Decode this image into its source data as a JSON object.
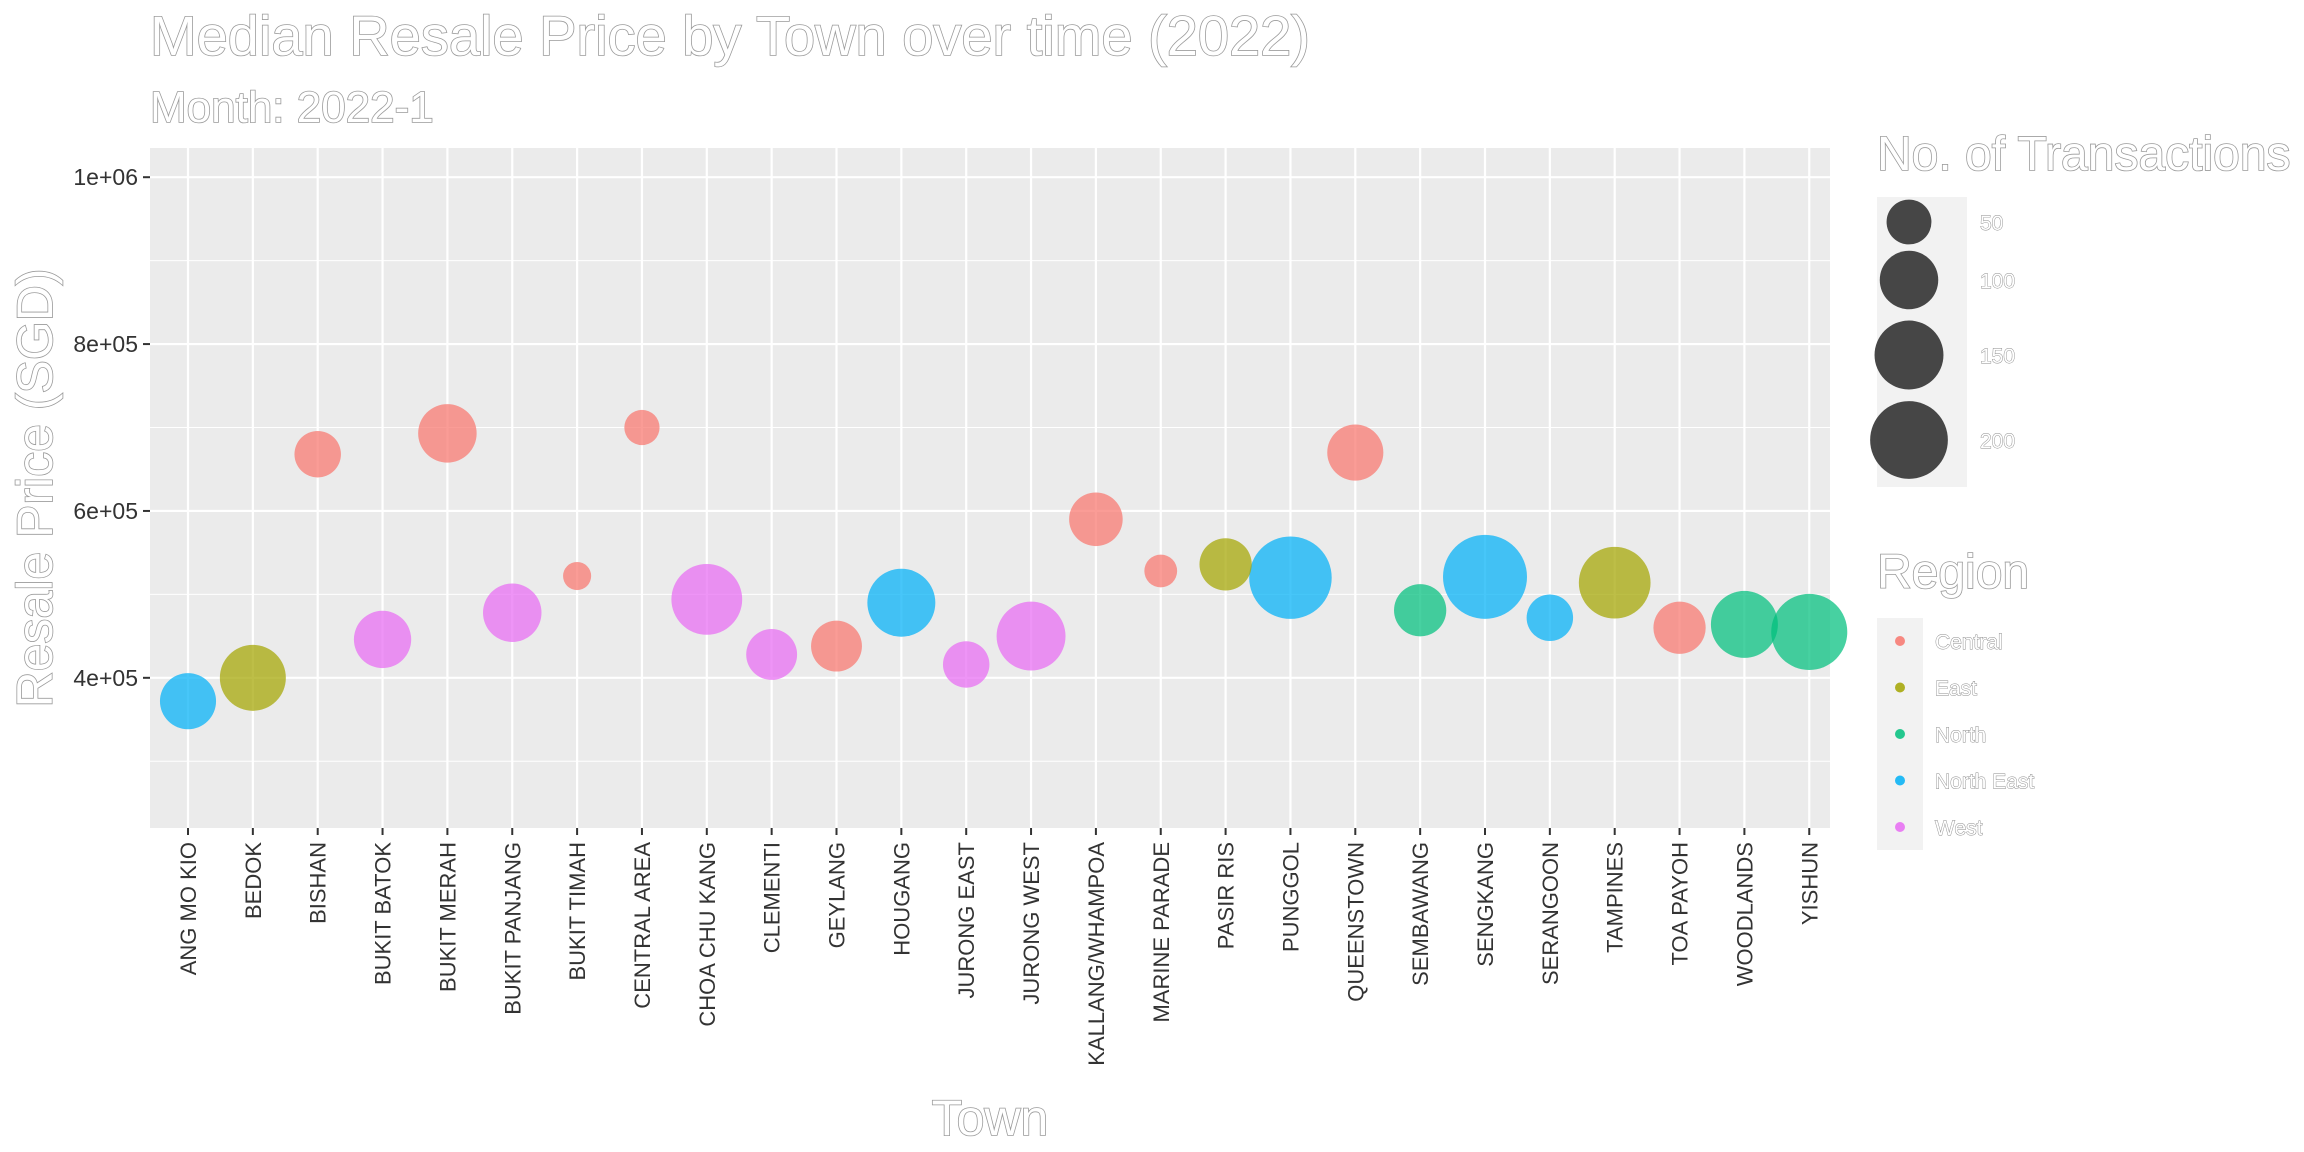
{
  "chart_data": {
    "type": "scatter",
    "title": "Median Resale Price by Town over time (2022)",
    "subtitle": "Month: 2022-1",
    "xlabel": "Town",
    "ylabel": "Resale Price (SGD)",
    "ylim": [
      220000,
      1035000
    ],
    "yticks": [
      400000,
      600000,
      800000,
      1000000
    ],
    "ytick_labels": [
      "4e+05",
      "6e+05",
      "8e+05",
      "1e+06"
    ],
    "grid": true,
    "legend_position": "right",
    "categories": [
      "ANG MO KIO",
      "BEDOK",
      "BISHAN",
      "BUKIT BATOK",
      "BUKIT MERAH",
      "BUKIT PANJANG",
      "BUKIT TIMAH",
      "CENTRAL AREA",
      "CHOA CHU KANG",
      "CLEMENTI",
      "GEYLANG",
      "HOUGANG",
      "JURONG EAST",
      "JURONG WEST",
      "KALLANG/WHAMPOA",
      "MARINE PARADE",
      "PASIR RIS",
      "PUNGGOL",
      "QUEENSTOWN",
      "SEMBAWANG",
      "SENGKANG",
      "SERANGOON",
      "TAMPINES",
      "TOA PAYOH",
      "WOODLANDS",
      "YISHUN"
    ],
    "points": [
      {
        "town": "ANG MO KIO",
        "price": 372000,
        "transactions": 90,
        "region": "North East"
      },
      {
        "town": "BEDOK",
        "price": 400000,
        "transactions": 135,
        "region": "East"
      },
      {
        "town": "BISHAN",
        "price": 668000,
        "transactions": 55,
        "region": "Central"
      },
      {
        "town": "BUKIT BATOK",
        "price": 446000,
        "transactions": 95,
        "region": "West"
      },
      {
        "town": "BUKIT MERAH",
        "price": 693000,
        "transactions": 100,
        "region": "Central"
      },
      {
        "town": "BUKIT PANJANG",
        "price": 478000,
        "transactions": 100,
        "region": "West"
      },
      {
        "town": "BUKIT TIMAH",
        "price": 522000,
        "transactions": 12,
        "region": "Central"
      },
      {
        "town": "CENTRAL AREA",
        "price": 700000,
        "transactions": 25,
        "region": "Central"
      },
      {
        "town": "CHOA CHU KANG",
        "price": 494000,
        "transactions": 160,
        "region": "West"
      },
      {
        "town": "CLEMENTI",
        "price": 428000,
        "transactions": 70,
        "region": "West"
      },
      {
        "town": "GEYLANG",
        "price": 438000,
        "transactions": 70,
        "region": "Central"
      },
      {
        "town": "HOUGANG",
        "price": 490000,
        "transactions": 145,
        "region": "North East"
      },
      {
        "town": "JURONG EAST",
        "price": 416000,
        "transactions": 55,
        "region": "West"
      },
      {
        "town": "JURONG WEST",
        "price": 450000,
        "transactions": 150,
        "region": "West"
      },
      {
        "town": "KALLANG/WHAMPOA",
        "price": 590000,
        "transactions": 80,
        "region": "Central"
      },
      {
        "town": "MARINE PARADE",
        "price": 528000,
        "transactions": 20,
        "region": "Central"
      },
      {
        "town": "PASIR RIS",
        "price": 536000,
        "transactions": 75,
        "region": "East"
      },
      {
        "town": "PUNGGOL",
        "price": 520000,
        "transactions": 230,
        "region": "North East"
      },
      {
        "town": "QUEENSTOWN",
        "price": 670000,
        "transactions": 90,
        "region": "Central"
      },
      {
        "town": "SEMBAWANG",
        "price": 481000,
        "transactions": 75,
        "region": "North"
      },
      {
        "town": "SENGKANG",
        "price": 521000,
        "transactions": 240,
        "region": "North East"
      },
      {
        "town": "SERANGOON",
        "price": 472000,
        "transactions": 55,
        "region": "North East"
      },
      {
        "town": "TAMPINES",
        "price": 514000,
        "transactions": 165,
        "region": "East"
      },
      {
        "town": "TOA PAYOH",
        "price": 460000,
        "transactions": 75,
        "region": "Central"
      },
      {
        "town": "WOODLANDS",
        "price": 464000,
        "transactions": 140,
        "region": "North"
      },
      {
        "town": "YISHUN",
        "price": 455000,
        "transactions": 190,
        "region": "North"
      }
    ],
    "size_legend": {
      "title": "No. of Transactions",
      "breaks": [
        50,
        100,
        150,
        200
      ],
      "labels": [
        "50",
        "100",
        "150",
        "200"
      ]
    },
    "color_legend": {
      "title": "Region",
      "entries": [
        {
          "label": "Central",
          "color": "#F8766D"
        },
        {
          "label": "East",
          "color": "#A3A500"
        },
        {
          "label": "North",
          "color": "#00BF7D"
        },
        {
          "label": "North East",
          "color": "#00B0F6"
        },
        {
          "label": "West",
          "color": "#E76BF3"
        }
      ]
    }
  }
}
